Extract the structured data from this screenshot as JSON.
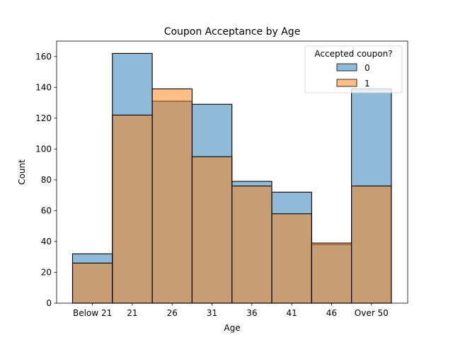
{
  "chart_data": {
    "type": "bar",
    "title": "Coupon Acceptance by Age",
    "xlabel": "Age",
    "ylabel": "Count",
    "categories": [
      "Below 21",
      "21",
      "26",
      "31",
      "36",
      "41",
      "46",
      "Over 50"
    ],
    "series": [
      {
        "name": "0",
        "values": [
          32,
          162,
          131,
          129,
          79,
          72,
          38,
          139
        ],
        "color": "#1f77b4"
      },
      {
        "name": "1",
        "values": [
          26,
          122,
          139,
          95,
          76,
          58,
          39,
          76
        ],
        "color": "#ff7f0e"
      }
    ],
    "ylim": [
      0,
      170
    ],
    "yticks": [
      0,
      20,
      40,
      60,
      80,
      100,
      120,
      140,
      160
    ],
    "grid": false,
    "legend": {
      "title": "Accepted coupon?",
      "placement": "top-right"
    }
  }
}
